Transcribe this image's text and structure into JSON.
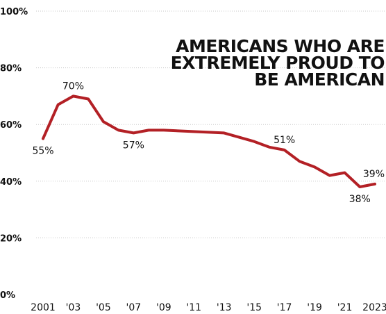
{
  "chart_data": {
    "type": "line",
    "title": "AMERICANS WHO ARE EXTREMELY PROUD TO BE AMERICAN",
    "title_lines": [
      "AMERICANS WHO ARE",
      "EXTREMELY PROUD TO",
      "BE AMERICAN"
    ],
    "xlabel": "",
    "ylabel": "",
    "x_ticks": [
      "2001",
      "'03",
      "'05",
      "'07",
      "'09",
      "'11",
      "'13",
      "'15",
      "'17",
      "'19",
      "'21",
      "2023"
    ],
    "y_ticks": [
      "0%",
      "20%",
      "40%",
      "60%",
      "80%",
      "100%"
    ],
    "ylim": [
      0,
      100
    ],
    "xlim": [
      2001,
      2023
    ],
    "grid": true,
    "line_color": "#b32025",
    "series": [
      {
        "x": [
          2001,
          2002,
          2003,
          2004,
          2005,
          2006,
          2007,
          2008,
          2009,
          2013,
          2015,
          2016,
          2017,
          2018,
          2019,
          2020,
          2021,
          2022,
          2023
        ],
        "values": [
          55,
          67,
          70,
          69,
          61,
          58,
          57,
          58,
          58,
          57,
          54,
          52,
          51,
          47,
          45,
          42,
          43,
          38,
          39
        ]
      }
    ],
    "data_labels": [
      {
        "x": 2001,
        "text": "55%",
        "pos": "below"
      },
      {
        "x": 2003,
        "text": "70%",
        "pos": "above"
      },
      {
        "x": 2007,
        "text": "57%",
        "pos": "below"
      },
      {
        "x": 2017,
        "text": "51%",
        "pos": "above"
      },
      {
        "x": 2022,
        "text": "38%",
        "pos": "below"
      },
      {
        "x": 2023,
        "text": "39%",
        "pos": "above"
      }
    ]
  }
}
